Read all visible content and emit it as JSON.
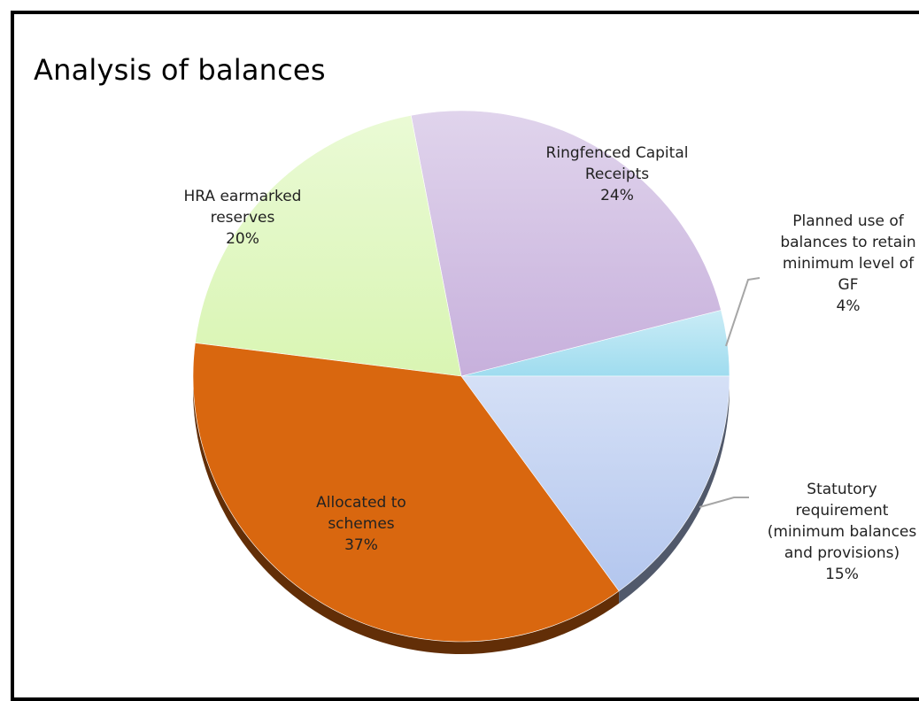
{
  "chart_data": {
    "type": "pie",
    "title": "Analysis of balances",
    "slices": [
      {
        "name": "Planned use of balances to retain minimum level of GF",
        "label_lines": [
          "Planned use of",
          "balances to retain",
          "minimum level of",
          "GF"
        ],
        "percent_label": "4%",
        "value": 4,
        "color": "#9fdcef"
      },
      {
        "name": "Ringfenced Capital Receipts",
        "label_lines": [
          "Ringfenced Capital",
          "Receipts"
        ],
        "percent_label": "24%",
        "value": 24,
        "color": "#c7b0dc"
      },
      {
        "name": "HRA earmarked reserves",
        "label_lines": [
          "HRA earmarked",
          "reserves"
        ],
        "percent_label": "20%",
        "value": 20,
        "color": "#d9f5b3"
      },
      {
        "name": "Allocated to schemes",
        "label_lines": [
          "Allocated to",
          "schemes"
        ],
        "percent_label": "37%",
        "value": 37,
        "color": "#d9670f"
      },
      {
        "name": "Statutory requirement (minimum balances and provisions)",
        "label_lines": [
          "Statutory",
          "requirement",
          "(minimum balances",
          "and provisions)"
        ],
        "percent_label": "15%",
        "value": 15,
        "color": "#b3c6ee"
      }
    ]
  }
}
